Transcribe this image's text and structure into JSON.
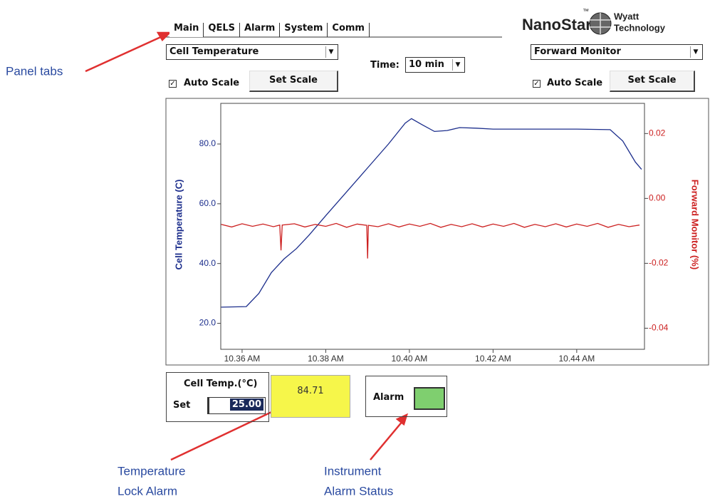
{
  "annotations": {
    "panel_tabs": "Panel tabs",
    "temperature_lock_alarm": [
      "Temperature",
      "Lock Alarm"
    ],
    "instrument_alarm_status": [
      "Instrument",
      "Alarm Status"
    ]
  },
  "tabs": [
    "Main",
    "QELS",
    "Alarm",
    "System",
    "Comm"
  ],
  "logo": {
    "name": "NanoStar",
    "tm": "™",
    "company": [
      "Wyatt",
      "Technology"
    ]
  },
  "left_controls": {
    "dropdown": "Cell Temperature",
    "checkbox": "Auto Scale",
    "button": "Set Scale"
  },
  "time": {
    "label": "Time:",
    "value": "10 min"
  },
  "right_controls": {
    "dropdown": "Forward Monitor",
    "checkbox": "Auto Scale",
    "button": "Set Scale"
  },
  "chart": {
    "type": "line",
    "y_label": "Cell Temperature (C)",
    "y2_label": "Forward Monitor (%)",
    "xlim": [
      635.49,
      645.62
    ],
    "xticks": [
      {
        "value": 636,
        "label": "10.36 AM"
      },
      {
        "value": 638,
        "label": "10.38 AM"
      },
      {
        "value": 640,
        "label": "10.40 AM"
      },
      {
        "value": 642,
        "label": "10.42 AM"
      },
      {
        "value": 644,
        "label": "10.44 AM"
      }
    ],
    "ylim": [
      11.3,
      93.6
    ],
    "yticks": [
      {
        "value": 20,
        "label": "20.0"
      },
      {
        "value": 40,
        "label": "40.0"
      },
      {
        "value": 60,
        "label": "60.0"
      },
      {
        "value": 80,
        "label": "80.0"
      }
    ],
    "y2lim": [
      -0.0465,
      0.0293
    ],
    "y2ticks": [
      -0.04,
      -0.02,
      {
        "value": 0,
        "label": "0.00"
      },
      0.02
    ],
    "series": [
      {
        "color": "#1c2e8c",
        "x": [
          635.5,
          636.1,
          636.4,
          636.7,
          637.0,
          637.3,
          637.6,
          638.0,
          638.5,
          639.0,
          639.5,
          639.9,
          640.05,
          640.3,
          640.6,
          640.9,
          641.2,
          641.6,
          642.0,
          643.0,
          644.0,
          644.8,
          645.1,
          645.4,
          645.55
        ],
        "values": [
          25.4,
          25.6,
          30,
          37,
          41.5,
          45,
          49.5,
          56,
          64,
          72,
          80,
          87,
          88.5,
          86.5,
          84.2,
          84.5,
          85.5,
          85.3,
          85.0,
          85.0,
          85.0,
          84.8,
          81,
          74,
          71.5
        ]
      },
      {
        "color": "#cc2020",
        "axis": "y2",
        "x": [
          635.5,
          635.75,
          636,
          636.25,
          636.5,
          636.75,
          636.9,
          636.93,
          636.96,
          637.25,
          637.5,
          637.75,
          638,
          638.25,
          638.5,
          638.75,
          638.98,
          639,
          639.02,
          639.25,
          639.5,
          639.75,
          640,
          640.25,
          640.5,
          640.75,
          641,
          641.25,
          641.5,
          641.75,
          642,
          642.25,
          642.5,
          642.75,
          643,
          643.25,
          643.5,
          643.75,
          644,
          644.25,
          644.5,
          644.75,
          645,
          645.25,
          645.5
        ],
        "values": [
          -0.008,
          -0.0088,
          -0.0078,
          -0.0086,
          -0.0079,
          -0.0087,
          -0.0082,
          -0.016,
          -0.0082,
          -0.0078,
          -0.0088,
          -0.008,
          -0.0086,
          -0.0077,
          -0.0089,
          -0.0079,
          -0.0083,
          -0.0185,
          -0.0083,
          -0.0087,
          -0.0078,
          -0.0088,
          -0.0079,
          -0.0086,
          -0.0077,
          -0.0089,
          -0.008,
          -0.0087,
          -0.0078,
          -0.0088,
          -0.0079,
          -0.0086,
          -0.0077,
          -0.0089,
          -0.008,
          -0.0087,
          -0.0078,
          -0.0088,
          -0.0079,
          -0.0086,
          -0.0077,
          -0.0089,
          -0.008,
          -0.0087,
          -0.0082
        ]
      }
    ]
  },
  "status": {
    "title": "Cell Temp.(°C)",
    "set_label": "Set",
    "set_value": "25.00",
    "current": "84.71",
    "alarm_label": "Alarm"
  }
}
